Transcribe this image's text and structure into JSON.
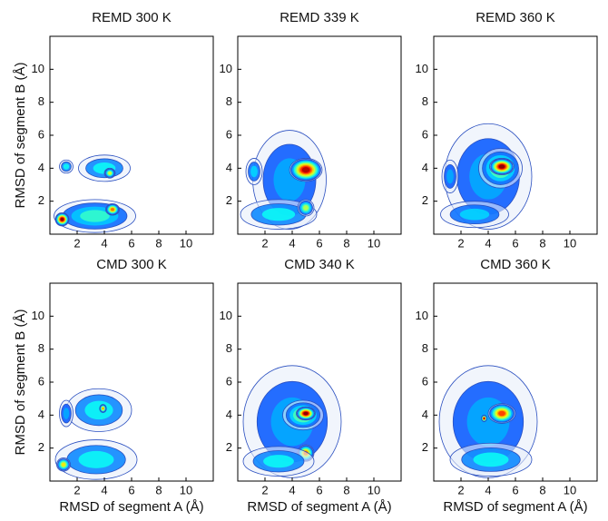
{
  "chart_data": [
    {
      "type": "density",
      "title": "REMD 300 K",
      "ylabel": "RMSD of segment B (Å)",
      "xlim": [
        0,
        12
      ],
      "ylim": [
        0,
        12
      ],
      "xticks": [
        2,
        4,
        6,
        8,
        10
      ],
      "yticks": [
        2,
        4,
        6,
        8,
        10
      ],
      "x": [
        3.3,
        4,
        1.2,
        0.9,
        4.6,
        4.4
      ],
      "y": [
        1.1,
        4,
        4.1,
        0.9,
        1.5,
        3.7
      ],
      "rx": [
        3,
        1.9,
        0.5,
        0.5,
        0.5,
        0.4
      ],
      "ry": [
        1,
        0.8,
        0.4,
        0.4,
        0.35,
        0.3
      ],
      "level": [
        0.35,
        0.3,
        0.3,
        1,
        0.75,
        0.55
      ]
    },
    {
      "type": "density",
      "title": "REMD 339 K",
      "xlim": [
        0,
        12
      ],
      "ylim": [
        0,
        12
      ],
      "xticks": [
        2,
        4,
        6,
        8,
        10
      ],
      "yticks": [
        2,
        4,
        6,
        8,
        10
      ],
      "x": [
        3.8,
        3,
        5,
        5,
        1.2
      ],
      "y": [
        3.3,
        1.2,
        3.9,
        1.6,
        3.8
      ],
      "rx": [
        2.7,
        2.8,
        1.2,
        0.6,
        0.6
      ],
      "ry": [
        3,
        0.9,
        0.7,
        0.5,
        0.8
      ],
      "level": [
        0.2,
        0.3,
        0.95,
        0.5,
        0.25
      ]
    },
    {
      "type": "density",
      "title": "REMD 360 K",
      "xlim": [
        0,
        12
      ],
      "ylim": [
        0,
        12
      ],
      "xticks": [
        2,
        4,
        6,
        8,
        10
      ],
      "yticks": [
        2,
        4,
        6,
        8,
        10
      ],
      "x": [
        4,
        4.9,
        5,
        1.2,
        3
      ],
      "y": [
        3.5,
        4,
        4.1,
        3.5,
        1.2
      ],
      "rx": [
        3.2,
        1.6,
        0.9,
        0.6,
        2.5
      ],
      "ry": [
        3.2,
        1.2,
        0.5,
        1,
        0.8
      ],
      "level": [
        0.2,
        0.5,
        1,
        0.2,
        0.25
      ]
    },
    {
      "type": "density",
      "title": "CMD 300 K",
      "xlabel": "RMSD of segment A (Å)",
      "ylabel": "RMSD of segment B (Å)",
      "xlim": [
        0,
        12
      ],
      "ylim": [
        0,
        12
      ],
      "xticks": [
        2,
        4,
        6,
        8,
        10
      ],
      "yticks": [
        2,
        4,
        6,
        8,
        10
      ],
      "x": [
        3.4,
        3.6,
        1.2,
        1,
        3.9
      ],
      "y": [
        1.3,
        4.3,
        4.1,
        1,
        4.4
      ],
      "rx": [
        3,
        2.4,
        0.5,
        0.5,
        0.25
      ],
      "ry": [
        1.2,
        1.3,
        0.8,
        0.4,
        0.25
      ],
      "level": [
        0.3,
        0.3,
        0.2,
        0.6,
        0.7
      ]
    },
    {
      "type": "density",
      "title": "CMD 340 K",
      "xlabel": "RMSD of segment A (Å)",
      "xlim": [
        0,
        12
      ],
      "ylim": [
        0,
        12
      ],
      "xticks": [
        2,
        4,
        6,
        8,
        10
      ],
      "yticks": [
        2,
        4,
        6,
        8,
        10
      ],
      "x": [
        4,
        4.8,
        5,
        5,
        3
      ],
      "y": [
        3.6,
        4,
        4.1,
        1.7,
        1.2
      ],
      "rx": [
        3.6,
        1.5,
        0.7,
        0.6,
        2.6
      ],
      "ry": [
        3.4,
        0.9,
        0.4,
        0.5,
        0.9
      ],
      "level": [
        0.2,
        0.5,
        1,
        0.75,
        0.3
      ]
    },
    {
      "type": "density",
      "title": "CMD 360 K",
      "xlabel": "RMSD of segment A (Å)",
      "xlim": [
        0,
        12
      ],
      "ylim": [
        0,
        12
      ],
      "xticks": [
        2,
        4,
        6,
        8,
        10
      ],
      "yticks": [
        2,
        4,
        6,
        8,
        10
      ],
      "x": [
        4,
        5,
        3.7,
        4.2
      ],
      "y": [
        3.6,
        4.1,
        3.8,
        1.3
      ],
      "rx": [
        3.6,
        1,
        0.2,
        3
      ],
      "ry": [
        3.4,
        0.6,
        0.2,
        1
      ],
      "level": [
        0.2,
        0.8,
        1,
        0.3
      ]
    }
  ]
}
